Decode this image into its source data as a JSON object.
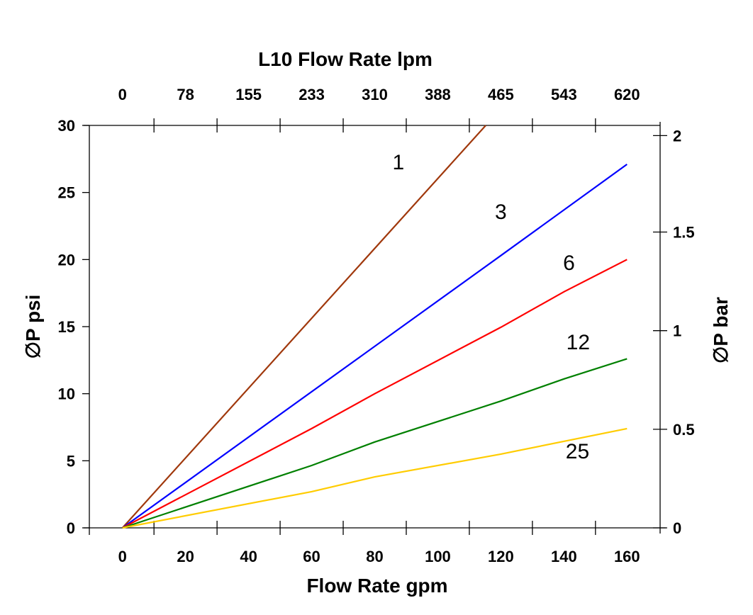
{
  "chart_data": {
    "type": "line",
    "title": "L10  Flow Rate lpm",
    "xlabel": "Flow Rate gpm",
    "ylabel": "∅P psi",
    "y2label": "∅P bar",
    "xlim": [
      -10.5,
      170.5
    ],
    "ylim": [
      0,
      30
    ],
    "x_ticks": [
      "0",
      "20",
      "40",
      "60",
      "80",
      "100",
      "120",
      "140",
      "160"
    ],
    "x_tick_values": [
      0,
      20,
      40,
      60,
      80,
      100,
      120,
      140,
      160
    ],
    "x2_ticks": [
      "0",
      "78",
      "155",
      "233",
      "310",
      "388",
      "465",
      "543",
      "620"
    ],
    "y_ticks": [
      "0",
      "5",
      "10",
      "15",
      "20",
      "25",
      "30"
    ],
    "y_tick_values": [
      0,
      5,
      10,
      15,
      20,
      25,
      30
    ],
    "y2_ticks": [
      "0",
      "0.5",
      "1",
      "1.5",
      "2"
    ],
    "y2_tick_values": [
      0,
      0.5,
      1,
      1.5,
      2
    ],
    "psi_per_bar": 14.7,
    "grid": false,
    "series": [
      {
        "name": "1",
        "color": "#a0380c",
        "x": [
          0,
          115.2
        ],
        "y": [
          0,
          30
        ],
        "label_at": [
          87.5,
          27.3
        ]
      },
      {
        "name": "3",
        "color": "#0000ff",
        "x": [
          0,
          120,
          160
        ],
        "y": [
          0,
          20.3,
          27.1
        ],
        "label_at": [
          120,
          23.6
        ]
      },
      {
        "name": "6",
        "color": "#ff0000",
        "x": [
          0,
          60,
          80,
          120,
          140,
          160
        ],
        "y": [
          0,
          7.4,
          10.0,
          14.95,
          17.6,
          20.0
        ],
        "label_at": [
          141.6,
          19.8
        ]
      },
      {
        "name": "12",
        "color": "#008000",
        "x": [
          0,
          60,
          80,
          120,
          140,
          160
        ],
        "y": [
          0,
          4.65,
          6.4,
          9.45,
          11.1,
          12.6
        ],
        "label_at": [
          144.5,
          13.9
        ]
      },
      {
        "name": "25",
        "color": "#ffcc00",
        "x": [
          0,
          60,
          80,
          120,
          160
        ],
        "y": [
          0,
          2.7,
          3.8,
          5.5,
          7.4
        ],
        "label_at": [
          144.3,
          5.75
        ]
      }
    ]
  }
}
